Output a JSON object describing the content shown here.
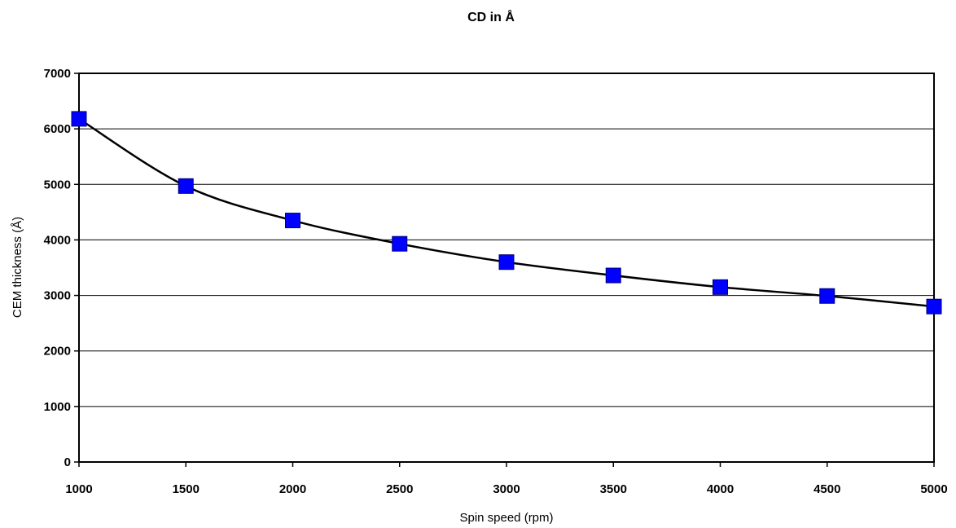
{
  "chart_data": {
    "type": "line",
    "title": "CD in Å",
    "xlabel": "Spin speed (rpm)",
    "ylabel": "CEM thickness (Å)",
    "xlim": [
      1000,
      5000
    ],
    "ylim": [
      0,
      7000
    ],
    "xticks": [
      "1000",
      "1500",
      "2000",
      "2500",
      "3000",
      "3500",
      "4000",
      "4500",
      "5000"
    ],
    "yticks": [
      "0",
      "1000",
      "2000",
      "3000",
      "4000",
      "5000",
      "6000",
      "7000"
    ],
    "grid": true,
    "legend": "none",
    "series": [
      {
        "x": [
          1000,
          1500,
          2000,
          2500,
          3000,
          3500,
          4000,
          4500,
          5000
        ],
        "y": [
          6180,
          4970,
          4350,
          3930,
          3600,
          3360,
          3150,
          2990,
          2800
        ],
        "marker": "square",
        "marker_color": "#0000ff",
        "line_color": "#000000"
      }
    ]
  }
}
